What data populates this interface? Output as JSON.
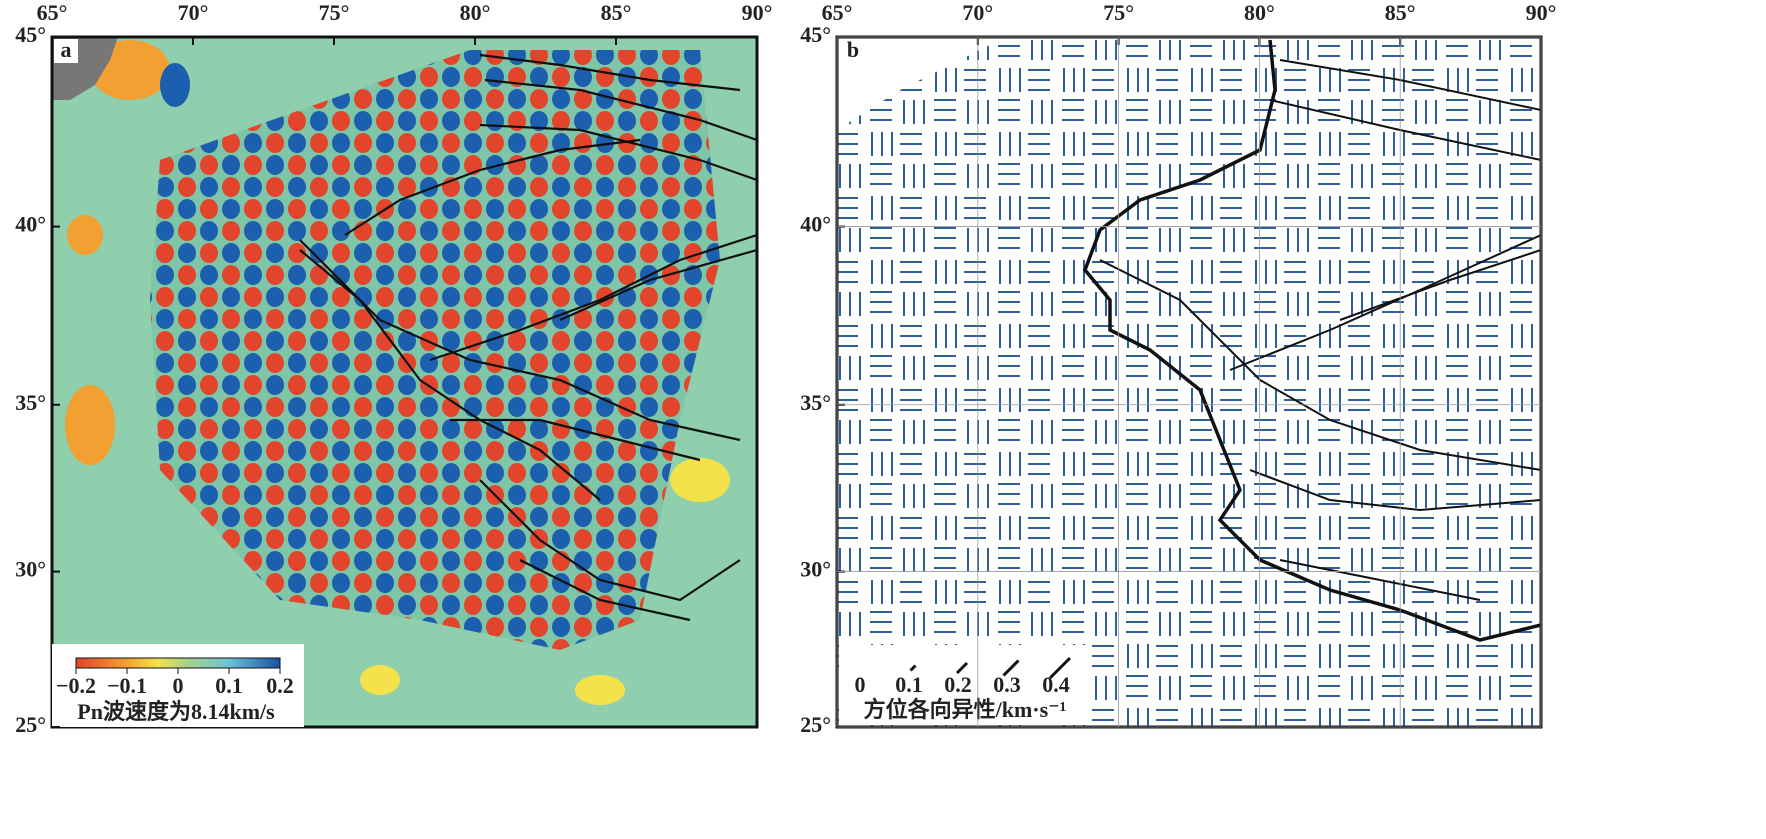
{
  "panels": [
    {
      "label": "a",
      "xlim": [
        65,
        90
      ],
      "ylim": [
        25,
        45
      ],
      "xticks": [
        {
          "value": 65,
          "label": "65°"
        },
        {
          "value": 70,
          "label": "70°"
        },
        {
          "value": 75,
          "label": "75°"
        },
        {
          "value": 80,
          "label": "80°"
        },
        {
          "value": 85,
          "label": "85°"
        },
        {
          "value": 90,
          "label": "90°"
        }
      ],
      "yticks": [
        {
          "value": 25,
          "label": "25°"
        },
        {
          "value": 30,
          "label": "30°"
        },
        {
          "value": 35,
          "label": "35°"
        },
        {
          "value": 40,
          "label": "40°"
        },
        {
          "value": 45,
          "label": "45°"
        }
      ],
      "colorbar": {
        "lim": [
          -0.2,
          0.2
        ],
        "ticks": [
          {
            "value": -0.2,
            "label": "−0.2"
          },
          {
            "value": -0.1,
            "label": "−0.1"
          },
          0,
          0.1,
          0.2
        ],
        "title": "Pn波速度为8.14km/s"
      }
    },
    {
      "label": "b",
      "xlim": [
        65,
        90
      ],
      "ylim": [
        25,
        45
      ],
      "xticks": [
        {
          "value": 65,
          "label": "65°"
        },
        {
          "value": 70,
          "label": "70°"
        },
        {
          "value": 75,
          "label": "75°"
        },
        {
          "value": 80,
          "label": "80°"
        },
        {
          "value": 85,
          "label": "85°"
        },
        {
          "value": 90,
          "label": "90°"
        }
      ],
      "yticks": [
        {
          "value": 25,
          "label": "25°"
        },
        {
          "value": 30,
          "label": "30°"
        },
        {
          "value": 35,
          "label": "35°"
        },
        {
          "value": 40,
          "label": "40°"
        },
        {
          "value": 45,
          "label": "45°"
        }
      ],
      "legend": {
        "lim": [
          0,
          0.4
        ],
        "ticks": [
          0,
          0.1,
          0.2,
          0.3,
          0.4
        ],
        "title": "方位各向异性/km·s⁻¹"
      }
    }
  ]
}
